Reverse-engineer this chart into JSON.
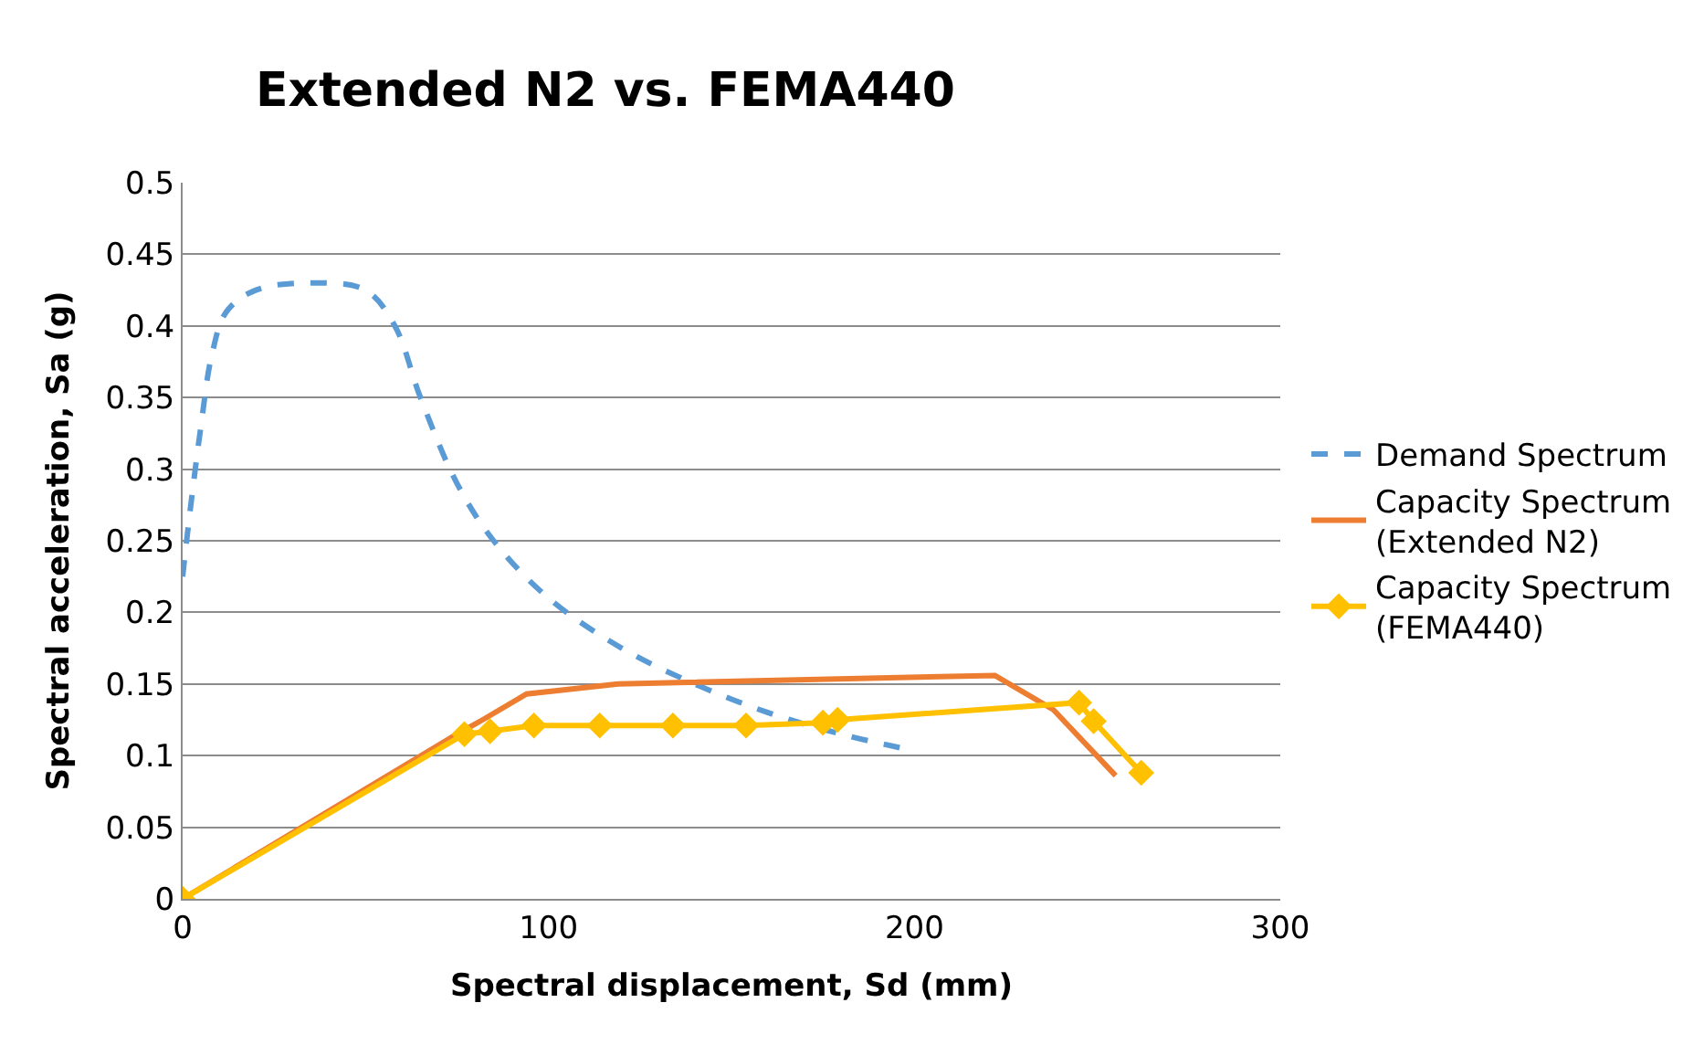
{
  "chart_data": {
    "type": "line",
    "title": "Extended N2 vs. FEMA440",
    "xlabel": "Spectral displacement, Sd (mm)",
    "ylabel": "Spectral acceleration, Sa (g)",
    "xlim": [
      0,
      300
    ],
    "xticks": [
      0,
      100,
      200,
      300
    ],
    "ylim": [
      0,
      0.5
    ],
    "yticks": [
      0,
      0.05,
      0.1,
      0.15,
      0.2,
      0.25,
      0.3,
      0.35,
      0.4,
      0.45,
      0.5
    ],
    "grid": "y",
    "legend": "right",
    "series": [
      {
        "name": "Demand Spectrum",
        "color": "#5b9bd5",
        "line_style": "dashed",
        "marker": "none",
        "x": [
          0,
          2,
          5,
          8,
          12,
          20,
          35,
          50,
          58,
          65,
          75,
          85,
          100,
          120,
          140,
          160,
          180,
          197
        ],
        "values": [
          0.225,
          0.27,
          0.33,
          0.38,
          0.41,
          0.425,
          0.43,
          0.425,
          0.4,
          0.35,
          0.29,
          0.25,
          0.21,
          0.175,
          0.15,
          0.13,
          0.115,
          0.105
        ]
      },
      {
        "name": "Capacity Spectrum (Extended N2)",
        "color": "#ed7d31",
        "line_style": "solid",
        "marker": "none",
        "x": [
          0,
          75,
          82,
          94,
          119,
          222,
          238,
          255
        ],
        "values": [
          0,
          0.115,
          0.125,
          0.143,
          0.15,
          0.156,
          0.132,
          0.086
        ]
      },
      {
        "name": "Capacity Spectrum (FEMA440)",
        "color": "#ffc000",
        "line_style": "solid",
        "marker": "diamond",
        "x": [
          0,
          77,
          84,
          96,
          114,
          134,
          154,
          175,
          179,
          245,
          249,
          262
        ],
        "values": [
          0,
          0.115,
          0.117,
          0.121,
          0.121,
          0.121,
          0.121,
          0.123,
          0.125,
          0.137,
          0.124,
          0.088
        ]
      }
    ]
  }
}
